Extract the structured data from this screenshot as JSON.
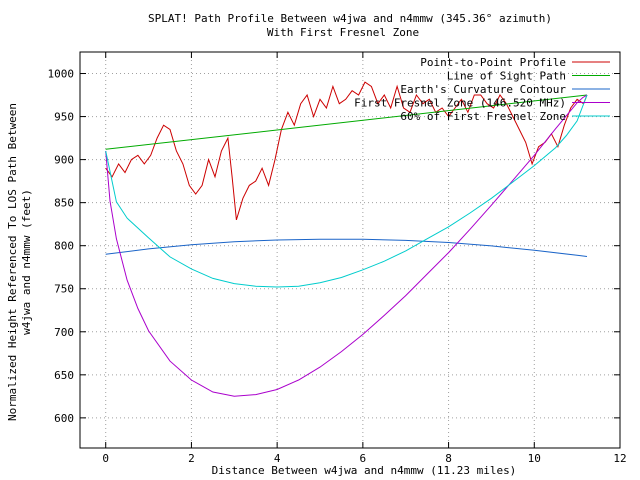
{
  "chart_data": {
    "type": "line",
    "title": "SPLAT! Path Profile Between w4jwa and n4mmw (345.36° azimuth)",
    "subtitle": "With First Fresnel Zone",
    "xlabel": "Distance Between w4jwa and n4mmw (11.23 miles)",
    "ylabel_line1": "Normalized Height Referenced To LOS Path Between",
    "ylabel_line2": "w4jwa and n4mmw (feet)",
    "xlim": [
      -0.6,
      12
    ],
    "ylim": [
      565,
      1025
    ],
    "x_ticks": [
      0,
      2,
      4,
      6,
      8,
      10,
      12
    ],
    "x_tick_labels": [
      "0",
      "2",
      "4",
      "6",
      "8",
      "10",
      "12"
    ],
    "y_ticks": [
      600,
      650,
      700,
      750,
      800,
      850,
      900,
      950,
      1000
    ],
    "y_tick_labels": [
      "600",
      "650",
      "700",
      "750",
      "800",
      "850",
      "900",
      "950",
      "1000"
    ],
    "grid": true,
    "legend_position": "top-right",
    "series": [
      {
        "name": "Point-to-Point Profile",
        "color": "#cc0000",
        "x": [
          0,
          0.15,
          0.3,
          0.45,
          0.6,
          0.75,
          0.9,
          1.05,
          1.2,
          1.35,
          1.5,
          1.65,
          1.8,
          1.95,
          2.1,
          2.25,
          2.4,
          2.55,
          2.7,
          2.85,
          2.95,
          3.05,
          3.2,
          3.35,
          3.5,
          3.65,
          3.8,
          3.95,
          4.1,
          4.25,
          4.4,
          4.55,
          4.7,
          4.85,
          5.0,
          5.15,
          5.3,
          5.45,
          5.6,
          5.75,
          5.9,
          6.05,
          6.2,
          6.35,
          6.5,
          6.65,
          6.8,
          6.95,
          7.1,
          7.25,
          7.4,
          7.55,
          7.7,
          7.85,
          8.0,
          8.15,
          8.3,
          8.45,
          8.6,
          8.75,
          8.9,
          9.05,
          9.2,
          9.35,
          9.5,
          9.65,
          9.8,
          9.95,
          10.1,
          10.25,
          10.4,
          10.55,
          10.7,
          10.85,
          11.0,
          11.15,
          11.23
        ],
        "y": [
          890,
          880,
          895,
          885,
          900,
          905,
          895,
          905,
          925,
          940,
          935,
          910,
          895,
          870,
          860,
          870,
          900,
          880,
          910,
          925,
          880,
          830,
          855,
          870,
          875,
          890,
          870,
          900,
          935,
          955,
          940,
          965,
          975,
          950,
          970,
          960,
          985,
          965,
          970,
          980,
          975,
          990,
          985,
          965,
          975,
          960,
          985,
          960,
          955,
          975,
          965,
          970,
          955,
          960,
          950,
          960,
          970,
          955,
          975,
          975,
          965,
          960,
          975,
          965,
          950,
          935,
          920,
          895,
          915,
          920,
          930,
          915,
          940,
          960,
          970,
          965,
          975
        ]
      },
      {
        "name": "Line of Sight Path",
        "color": "#00aa00",
        "x": [
          0,
          11.23
        ],
        "y": [
          912,
          975
        ]
      },
      {
        "name": "Earth's Curvature Contour",
        "color": "#1a64c8",
        "x": [
          0,
          1,
          2,
          3,
          4,
          5,
          5.615,
          6,
          7,
          8,
          9,
          10,
          11,
          11.23
        ],
        "y": [
          790,
          796.3,
          801.1,
          804.6,
          806.6,
          807.4,
          807.5,
          807.4,
          806.2,
          803.7,
          799.8,
          794.7,
          788.8,
          787.5
        ]
      },
      {
        "name": "First Fresnel Zone (146.520 MHz)",
        "color": "#aa00cc",
        "x": [
          0,
          0.1,
          0.25,
          0.5,
          0.75,
          1,
          1.5,
          2,
          2.5,
          3,
          3.5,
          4,
          4.5,
          5,
          5.5,
          6,
          6.5,
          7,
          7.5,
          8,
          8.5,
          9,
          9.5,
          10,
          10.5,
          10.75,
          11,
          11.13,
          11.23
        ],
        "y": [
          910,
          852,
          808,
          760,
          727,
          701,
          666,
          644,
          630,
          625,
          627,
          633,
          644,
          659,
          677,
          697,
          719,
          742,
          767,
          792,
          819,
          847,
          876,
          905,
          936,
          951,
          966,
          972,
          975
        ]
      },
      {
        "name": "60% of First Fresnel Zone",
        "color": "#00cccc",
        "x": [
          0,
          0.25,
          0.5,
          1,
          1.5,
          2,
          2.5,
          3,
          3.5,
          4,
          4.5,
          5,
          5.5,
          6,
          6.5,
          7,
          7.5,
          8,
          8.5,
          9,
          9.5,
          10,
          10.5,
          10.75,
          11,
          11.23
        ],
        "y": [
          910,
          851,
          832,
          809,
          787,
          773,
          762,
          756,
          753,
          752,
          753,
          757,
          763,
          772,
          782,
          794,
          808,
          822,
          838,
          855,
          874,
          893,
          914,
          928,
          945,
          975
        ]
      }
    ]
  }
}
